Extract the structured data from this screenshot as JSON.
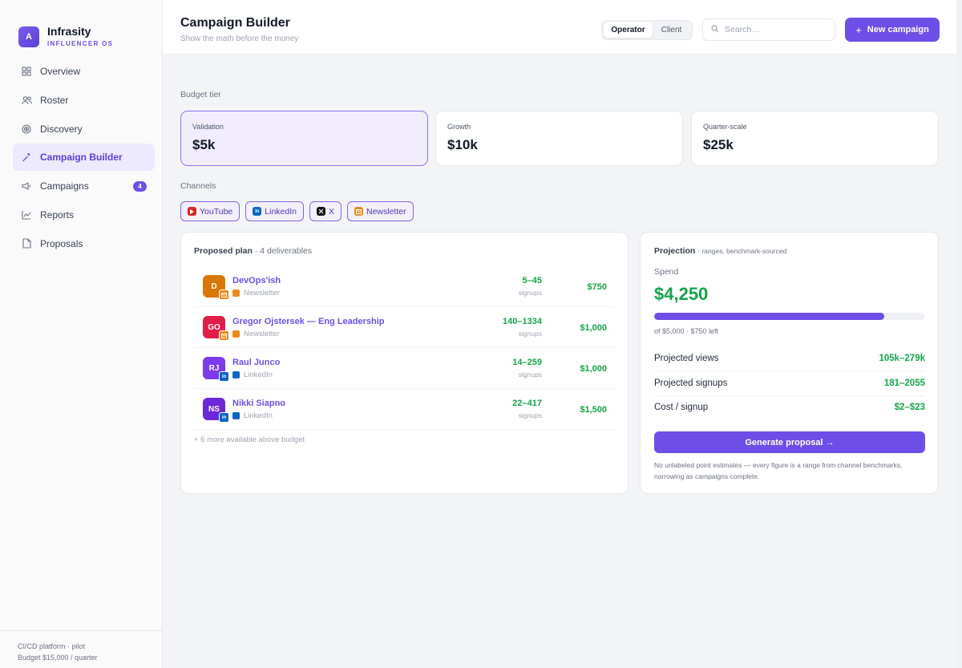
{
  "brand": {
    "name": "Infrasity",
    "subtitle": "INFLUENCER OS",
    "logo_glyph": "A"
  },
  "nav": [
    {
      "label": "Overview",
      "icon": "grid-icon"
    },
    {
      "label": "Roster",
      "icon": "users-icon"
    },
    {
      "label": "Discovery",
      "icon": "target-icon"
    },
    {
      "label": "Campaign Builder",
      "icon": "wand-icon",
      "active": true
    },
    {
      "label": "Campaigns",
      "icon": "megaphone-icon",
      "badge": "4"
    },
    {
      "label": "Reports",
      "icon": "chart-line-icon"
    },
    {
      "label": "Proposals",
      "icon": "document-icon"
    }
  ],
  "sidebar_footer": {
    "line1": "CI/CD platform · pilot",
    "line2": "Budget $15,000 / quarter"
  },
  "header": {
    "title": "Campaign Builder",
    "subtitle": "Show the math before the money",
    "view_toggle": {
      "operator": "Operator",
      "client": "Client",
      "selected": "Operator"
    },
    "search_placeholder": "Search…",
    "new_campaign": "New campaign"
  },
  "budget": {
    "label": "Budget tier",
    "tiers": [
      {
        "name": "Validation",
        "amount": "$5k",
        "selected": true
      },
      {
        "name": "Growth",
        "amount": "$10k"
      },
      {
        "name": "Quarter-scale",
        "amount": "$25k"
      }
    ]
  },
  "channels": {
    "label": "Channels",
    "items": [
      {
        "label": "YouTube",
        "color": "#dc2626",
        "icon": "youtube-icon"
      },
      {
        "label": "LinkedIn",
        "color": "#0a66c2",
        "icon": "linkedin-icon"
      },
      {
        "label": "X",
        "color": "#111111",
        "icon": "x-icon"
      },
      {
        "label": "Newsletter",
        "color": "#ea8a1c",
        "icon": "newsletter-icon"
      }
    ]
  },
  "plan": {
    "title": "Proposed plan",
    "deliverables": "· 4 deliverables",
    "rows": [
      {
        "initials": "D",
        "avatar_color": "#d97706",
        "name": "DevOps'ish",
        "channel": "Newsletter",
        "channel_color": "#ea8a1c",
        "signups": "5–45",
        "unit": "signups",
        "price": "$750"
      },
      {
        "initials": "GO",
        "avatar_color": "#e11d48",
        "name": "Gregor Ojstersek — Eng Leadership",
        "channel": "Newsletter",
        "channel_color": "#ea8a1c",
        "signups": "140–1334",
        "unit": "signups",
        "price": "$1,000"
      },
      {
        "initials": "RJ",
        "avatar_color": "#7c3aed",
        "name": "Raul Junco",
        "channel": "LinkedIn",
        "channel_color": "#0a66c2",
        "signups": "14–259",
        "unit": "signups",
        "price": "$1,000"
      },
      {
        "initials": "NS",
        "avatar_color": "#6d28d9",
        "name": "Nikki Siapno",
        "channel": "LinkedIn",
        "channel_color": "#0a66c2",
        "signups": "22–417",
        "unit": "signups",
        "price": "$1,500"
      }
    ],
    "more": "+ 6 more available above budget"
  },
  "projection": {
    "title": "Projection",
    "title_note": "· ranges, benchmark-sourced",
    "spend_label": "Spend",
    "spend_value": "$4,250",
    "spend_fraction": 0.85,
    "spend_note": "of $5,000 · $750 left",
    "metrics": [
      {
        "label": "Projected views",
        "value": "105k–279k"
      },
      {
        "label": "Projected signups",
        "value": "181–2055"
      },
      {
        "label": "Cost / signup",
        "value": "$2–$23"
      }
    ],
    "generate_button": "Generate proposal →",
    "disclaimer": "No unlabeled point estimates — every figure is a range from channel benchmarks, narrowing as campaigns complete."
  },
  "colors": {
    "accent": "#6d4ee6",
    "positive": "#16a34a"
  }
}
